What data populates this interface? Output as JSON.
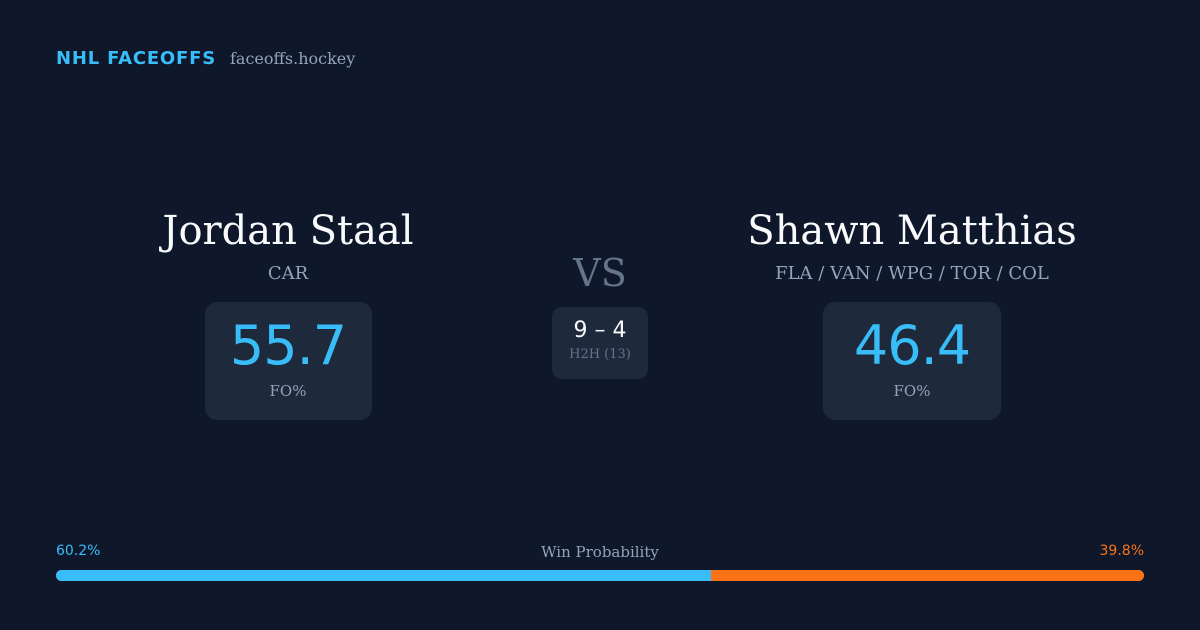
{
  "brand": {
    "name": "NHL FACEOFFS",
    "site": "faceoffs.hockey"
  },
  "player_left": {
    "name": "Jordan Staal",
    "team": "CAR",
    "fo_value": "55.7",
    "fo_label": "FO%"
  },
  "player_right": {
    "name": "Shawn Matthias",
    "team": "FLA / VAN / WPG / TOR / COL",
    "fo_value": "46.4",
    "fo_label": "FO%"
  },
  "matchup": {
    "vs_label": "VS",
    "h2h_score": "9 – 4",
    "h2h_label": "H2H (13)"
  },
  "win_probability": {
    "title": "Win Probability",
    "left_label": "60.2%",
    "right_label": "39.8%",
    "left_value": 60.2,
    "right_value": 39.8
  },
  "colors": {
    "background": "#0f172a",
    "accent_left": "#38bdf8",
    "accent_right": "#f97316",
    "card": "#1e293b",
    "muted_text": "#94a3b8"
  }
}
